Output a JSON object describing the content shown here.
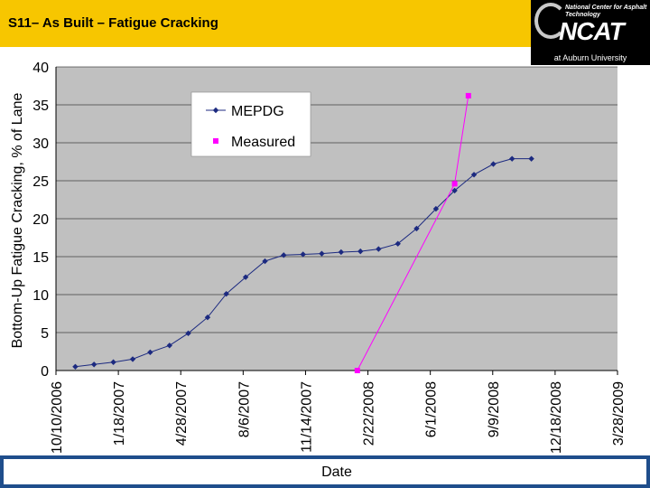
{
  "slide": {
    "title": "S11– As Built – Fatigue Cracking",
    "logo_text_small": "National Center for Asphalt Technology",
    "logo_text_big": "NCAT",
    "logo_sub": "at Auburn University"
  },
  "colors": {
    "header": "#f7c600",
    "plot_bg": "#c0c0c0",
    "mepdg": "#1c2a80",
    "measured": "#ff00ff",
    "footer": "#1f4e8c"
  },
  "chart_data": {
    "type": "line",
    "title": "",
    "xlabel": "Date",
    "ylabel": "Bottom-Up Fatigue Cracking, % of Lane",
    "ylim": [
      0,
      40
    ],
    "xlim": [
      "2006-10-10",
      "2009-03-28"
    ],
    "x_ticks": [
      "10/10/2006",
      "1/18/2007",
      "4/28/2007",
      "8/6/2007",
      "11/14/2007",
      "2/22/2008",
      "6/1/2008",
      "9/9/2008",
      "12/18/2008",
      "3/28/2009"
    ],
    "y_ticks": [
      0,
      5,
      10,
      15,
      20,
      25,
      30,
      35,
      40
    ],
    "grid": "horizontal",
    "legend": "top-center",
    "series": [
      {
        "name": "MEPDG",
        "color": "#1c2a80",
        "marker": "diamond",
        "x": [
          "2006-11-10",
          "2006-12-10",
          "2007-01-10",
          "2007-02-10",
          "2007-03-10",
          "2007-04-10",
          "2007-05-10",
          "2007-06-10",
          "2007-07-10",
          "2007-08-10",
          "2007-09-10",
          "2007-10-10",
          "2007-11-10",
          "2007-12-10",
          "2008-01-10",
          "2008-02-10",
          "2008-03-10",
          "2008-04-10",
          "2008-05-10",
          "2008-06-10",
          "2008-07-10",
          "2008-08-10",
          "2008-09-10",
          "2008-10-10",
          "2008-11-10"
        ],
        "y": [
          0.5,
          0.8,
          1.1,
          1.5,
          2.4,
          3.3,
          4.9,
          7.0,
          10.1,
          12.3,
          14.4,
          15.2,
          15.3,
          15.4,
          15.6,
          15.7,
          16.0,
          16.7,
          18.7,
          21.3,
          23.7,
          25.8,
          27.2,
          27.9,
          27.9
        ]
      },
      {
        "name": "Measured",
        "color": "#ff00ff",
        "marker": "square",
        "x": [
          "2008-02-05",
          "2008-07-10",
          "2008-08-01"
        ],
        "y": [
          0,
          24.6,
          36.2
        ]
      }
    ]
  }
}
